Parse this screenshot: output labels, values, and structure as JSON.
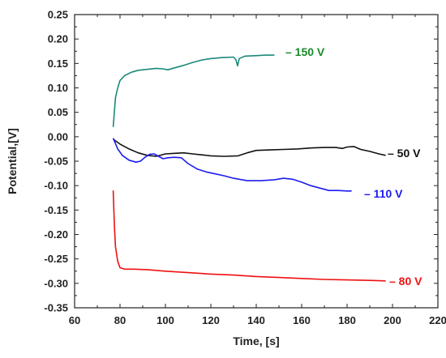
{
  "chart_data": {
    "type": "line",
    "xlabel": "Time, [s]",
    "ylabel": "Potential,[V]",
    "xlim": [
      60,
      220
    ],
    "ylim": [
      -0.35,
      0.25
    ],
    "x_ticks": [
      "60",
      "80",
      "100",
      "120",
      "140",
      "160",
      "180",
      "200",
      "220"
    ],
    "y_ticks": [
      "0.25",
      "0.20",
      "0.15",
      "0.10",
      "0.05",
      "0.00",
      "-0.05",
      "-0.10",
      "-0.15",
      "-0.20",
      "-0.25",
      "-0.30",
      "-0.35"
    ],
    "grid": false,
    "series": [
      {
        "name": "– 150 V",
        "color": "#1a8a7a",
        "label_color": "#1a8a2a",
        "points": [
          [
            77,
            0.02
          ],
          [
            77.5,
            0.05
          ],
          [
            78,
            0.08
          ],
          [
            79,
            0.1
          ],
          [
            80,
            0.115
          ],
          [
            82,
            0.125
          ],
          [
            85,
            0.132
          ],
          [
            88,
            0.136
          ],
          [
            92,
            0.138
          ],
          [
            96,
            0.14
          ],
          [
            99,
            0.139
          ],
          [
            101,
            0.137
          ],
          [
            104,
            0.141
          ],
          [
            108,
            0.146
          ],
          [
            112,
            0.152
          ],
          [
            116,
            0.157
          ],
          [
            120,
            0.16
          ],
          [
            125,
            0.162
          ],
          [
            130,
            0.163
          ],
          [
            131,
            0.158
          ],
          [
            131.8,
            0.145
          ],
          [
            132.5,
            0.16
          ],
          [
            135,
            0.165
          ],
          [
            140,
            0.166
          ],
          [
            144,
            0.167
          ],
          [
            148,
            0.167
          ]
        ]
      },
      {
        "name": "– 50 V",
        "color": "#111111",
        "label_color": "#111111",
        "points": [
          [
            77,
            -0.005
          ],
          [
            80,
            -0.015
          ],
          [
            84,
            -0.025
          ],
          [
            88,
            -0.033
          ],
          [
            92,
            -0.038
          ],
          [
            96,
            -0.04
          ],
          [
            100,
            -0.035
          ],
          [
            104,
            -0.034
          ],
          [
            108,
            -0.033
          ],
          [
            112,
            -0.035
          ],
          [
            116,
            -0.037
          ],
          [
            120,
            -0.039
          ],
          [
            126,
            -0.04
          ],
          [
            132,
            -0.039
          ],
          [
            136,
            -0.033
          ],
          [
            140,
            -0.028
          ],
          [
            146,
            -0.027
          ],
          [
            152,
            -0.026
          ],
          [
            158,
            -0.025
          ],
          [
            164,
            -0.023
          ],
          [
            170,
            -0.022
          ],
          [
            175,
            -0.022
          ],
          [
            178,
            -0.024
          ],
          [
            180,
            -0.021
          ],
          [
            183,
            -0.02
          ],
          [
            186,
            -0.026
          ],
          [
            190,
            -0.03
          ],
          [
            194,
            -0.035
          ],
          [
            197,
            -0.038
          ]
        ]
      },
      {
        "name": "– 110 V",
        "color": "#1c1cf0",
        "label_color": "#1c1cf0",
        "points": [
          [
            77,
            -0.003
          ],
          [
            79,
            -0.025
          ],
          [
            81,
            -0.038
          ],
          [
            84,
            -0.048
          ],
          [
            87,
            -0.052
          ],
          [
            89,
            -0.05
          ],
          [
            91,
            -0.042
          ],
          [
            93,
            -0.036
          ],
          [
            95,
            -0.035
          ],
          [
            97,
            -0.04
          ],
          [
            99,
            -0.045
          ],
          [
            101,
            -0.043
          ],
          [
            104,
            -0.042
          ],
          [
            107,
            -0.043
          ],
          [
            110,
            -0.055
          ],
          [
            114,
            -0.066
          ],
          [
            118,
            -0.072
          ],
          [
            122,
            -0.076
          ],
          [
            126,
            -0.08
          ],
          [
            130,
            -0.085
          ],
          [
            136,
            -0.09
          ],
          [
            142,
            -0.09
          ],
          [
            148,
            -0.088
          ],
          [
            152,
            -0.085
          ],
          [
            156,
            -0.087
          ],
          [
            160,
            -0.093
          ],
          [
            164,
            -0.1
          ],
          [
            168,
            -0.105
          ],
          [
            172,
            -0.11
          ],
          [
            176,
            -0.11
          ],
          [
            180,
            -0.111
          ],
          [
            182,
            -0.111
          ]
        ]
      },
      {
        "name": "– 80 V",
        "color": "#ee1111",
        "label_color": "#ee1111",
        "points": [
          [
            77,
            -0.11
          ],
          [
            77.5,
            -0.18
          ],
          [
            78,
            -0.225
          ],
          [
            79,
            -0.255
          ],
          [
            80,
            -0.268
          ],
          [
            82,
            -0.271
          ],
          [
            86,
            -0.271
          ],
          [
            92,
            -0.272
          ],
          [
            100,
            -0.275
          ],
          [
            110,
            -0.278
          ],
          [
            120,
            -0.281
          ],
          [
            130,
            -0.283
          ],
          [
            140,
            -0.286
          ],
          [
            150,
            -0.288
          ],
          [
            160,
            -0.29
          ],
          [
            170,
            -0.292
          ],
          [
            180,
            -0.293
          ],
          [
            190,
            -0.294
          ],
          [
            197,
            -0.295
          ]
        ]
      }
    ]
  }
}
